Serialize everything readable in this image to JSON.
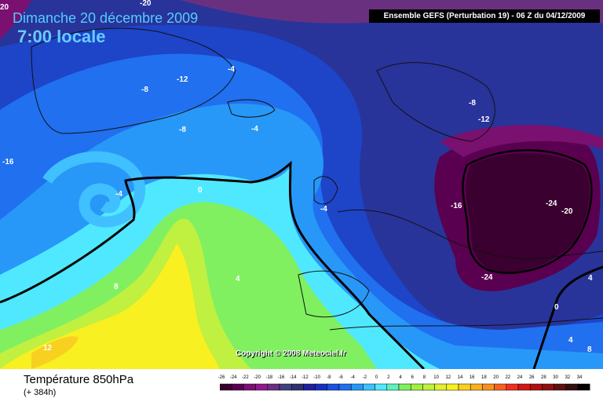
{
  "header": {
    "date": "Dimanche 20 décembre 2009",
    "time": "7:00 locale",
    "run": "Ensemble GEFS (Perturbation 19)  -  06 Z du 04/12/2009"
  },
  "footer": {
    "title": "Température 850hPa",
    "lead": "(+ 384h)",
    "copyright": "Copyright © 2008 Meteociel.fr"
  },
  "legend": {
    "unit_values": [
      "-26",
      "-24",
      "-22",
      "-20",
      "-18",
      "-16",
      "-14",
      "-12",
      "-10",
      "-8",
      "-6",
      "-4",
      "-2",
      "0",
      "2",
      "4",
      "6",
      "8",
      "10",
      "12",
      "14",
      "16",
      "18",
      "20",
      "22",
      "24",
      "26",
      "28",
      "30",
      "32",
      "34"
    ],
    "colors": [
      "#3a0030",
      "#5a0050",
      "#7a1070",
      "#921890",
      "#6a3080",
      "#404080",
      "#303070",
      "#2020a0",
      "#1830c0",
      "#1850e0",
      "#2070f0",
      "#2898f8",
      "#40c0ff",
      "#50e8ff",
      "#60f0c0",
      "#80f060",
      "#a0f040",
      "#c0f040",
      "#e0f030",
      "#f8f020",
      "#f8d020",
      "#f8b020",
      "#f89020",
      "#f86020",
      "#f03020",
      "#d01818",
      "#b01010",
      "#901010",
      "#601010",
      "#301010",
      "#000000"
    ]
  },
  "map_labels": [
    {
      "text": "-20"
    },
    {
      "text": "20"
    },
    {
      "text": "-12"
    },
    {
      "text": "-8"
    },
    {
      "text": "-4"
    },
    {
      "text": "-8"
    },
    {
      "text": "-4"
    },
    {
      "text": "-16"
    },
    {
      "text": "-4"
    },
    {
      "text": "0"
    },
    {
      "text": "-4"
    },
    {
      "text": "-8"
    },
    {
      "text": "-12"
    },
    {
      "text": "-16"
    },
    {
      "text": "-24"
    },
    {
      "text": "-20"
    },
    {
      "text": "-24"
    },
    {
      "text": "4"
    },
    {
      "text": "8"
    },
    {
      "text": "12"
    },
    {
      "text": "0"
    },
    {
      "text": "4"
    },
    {
      "text": "4"
    },
    {
      "text": "8"
    }
  ]
}
